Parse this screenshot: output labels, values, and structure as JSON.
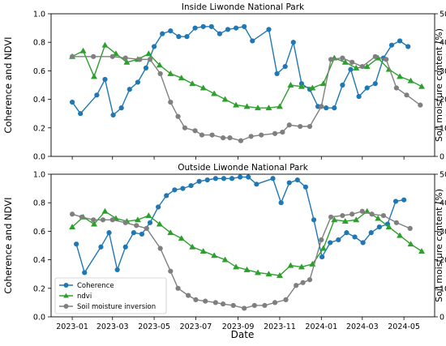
{
  "figure": {
    "xlabel": "Date",
    "x_ticks": [
      "2023-01",
      "2023-03",
      "2023-05",
      "2023-07",
      "2023-09",
      "2023-11",
      "2024-01",
      "2024-03",
      "2024-05"
    ],
    "legend": [
      {
        "name": "Coherence",
        "color": "#1f77b4",
        "marker": "circle"
      },
      {
        "name": "ndvi",
        "color": "#2ca02c",
        "marker": "triangle"
      },
      {
        "name": "Soil moisture inversion",
        "color": "#7f7f7f",
        "marker": "circle"
      }
    ]
  },
  "chart_data": [
    {
      "type": "line",
      "title": "Inside Liwonde National Park",
      "xlabel": "",
      "ylabel": "Coherence and NDVI",
      "y2label": "Soil moisture content (%)",
      "ylim": [
        0,
        1.0
      ],
      "y2lim": [
        0,
        50
      ],
      "yticks": [
        "0.0",
        "0.2",
        "0.4",
        "0.6",
        "0.8",
        "1.0"
      ],
      "y2ticks": [
        "0",
        "10",
        "20",
        "30",
        "40",
        "50"
      ],
      "xlim": [
        "2022-12-01",
        "2024-06-15"
      ],
      "grid": false,
      "series": [
        {
          "name": "Coherence",
          "axis": "left",
          "color": "#1f77b4",
          "marker": "circle",
          "points": [
            [
              "2023-01-01",
              0.38
            ],
            [
              "2023-01-13",
              0.3
            ],
            [
              "2023-02-06",
              0.43
            ],
            [
              "2023-02-18",
              0.54
            ],
            [
              "2023-03-02",
              0.29
            ],
            [
              "2023-03-14",
              0.34
            ],
            [
              "2023-03-26",
              0.47
            ],
            [
              "2023-04-07",
              0.52
            ],
            [
              "2023-04-19",
              0.62
            ],
            [
              "2023-05-01",
              0.77
            ],
            [
              "2023-05-13",
              0.86
            ],
            [
              "2023-05-25",
              0.88
            ],
            [
              "2023-06-06",
              0.84
            ],
            [
              "2023-06-18",
              0.84
            ],
            [
              "2023-06-30",
              0.9
            ],
            [
              "2023-07-12",
              0.91
            ],
            [
              "2023-07-24",
              0.91
            ],
            [
              "2023-08-05",
              0.86
            ],
            [
              "2023-08-17",
              0.89
            ],
            [
              "2023-08-29",
              0.9
            ],
            [
              "2023-09-10",
              0.91
            ],
            [
              "2023-09-22",
              0.81
            ],
            [
              "2023-10-16",
              0.89
            ],
            [
              "2023-10-28",
              0.58
            ],
            [
              "2023-11-09",
              0.63
            ],
            [
              "2023-11-21",
              0.8
            ],
            [
              "2023-12-03",
              0.51
            ],
            [
              "2023-12-15",
              0.47
            ],
            [
              "2023-12-27",
              0.35
            ],
            [
              "2024-01-08",
              0.34
            ],
            [
              "2024-01-20",
              0.34
            ],
            [
              "2024-02-01",
              0.5
            ],
            [
              "2024-02-13",
              0.61
            ],
            [
              "2024-02-25",
              0.42
            ],
            [
              "2024-03-08",
              0.48
            ],
            [
              "2024-03-20",
              0.51
            ],
            [
              "2024-04-01",
              0.69
            ],
            [
              "2024-04-13",
              0.78
            ],
            [
              "2024-04-25",
              0.81
            ],
            [
              "2024-05-07",
              0.77
            ]
          ]
        },
        {
          "name": "ndvi",
          "axis": "left",
          "color": "#2ca02c",
          "marker": "triangle",
          "points": [
            [
              "2023-01-01",
              0.7
            ],
            [
              "2023-01-17",
              0.74
            ],
            [
              "2023-02-02",
              0.56
            ],
            [
              "2023-02-18",
              0.78
            ],
            [
              "2023-03-06",
              0.72
            ],
            [
              "2023-03-22",
              0.66
            ],
            [
              "2023-04-07",
              0.68
            ],
            [
              "2023-04-23",
              0.72
            ],
            [
              "2023-05-09",
              0.64
            ],
            [
              "2023-05-25",
              0.58
            ],
            [
              "2023-06-10",
              0.55
            ],
            [
              "2023-06-26",
              0.51
            ],
            [
              "2023-07-12",
              0.48
            ],
            [
              "2023-07-28",
              0.44
            ],
            [
              "2023-08-13",
              0.4
            ],
            [
              "2023-08-29",
              0.36
            ],
            [
              "2023-09-14",
              0.35
            ],
            [
              "2023-09-30",
              0.34
            ],
            [
              "2023-10-16",
              0.34
            ],
            [
              "2023-11-01",
              0.35
            ],
            [
              "2023-11-17",
              0.5
            ],
            [
              "2023-12-03",
              0.49
            ],
            [
              "2023-12-19",
              0.48
            ],
            [
              "2024-01-04",
              0.51
            ],
            [
              "2024-01-20",
              0.69
            ],
            [
              "2024-02-05",
              0.66
            ],
            [
              "2024-02-21",
              0.62
            ],
            [
              "2024-03-08",
              0.63
            ],
            [
              "2024-03-24",
              0.69
            ],
            [
              "2024-04-09",
              0.61
            ],
            [
              "2024-04-25",
              0.56
            ],
            [
              "2024-05-11",
              0.53
            ],
            [
              "2024-05-27",
              0.49
            ]
          ]
        },
        {
          "name": "Soil moisture inversion",
          "axis": "right",
          "color": "#7f7f7f",
          "marker": "circle",
          "points": [
            [
              "2023-01-01",
              35
            ],
            [
              "2023-02-01",
              35
            ],
            [
              "2023-03-01",
              35
            ],
            [
              "2023-03-20",
              34.5
            ],
            [
              "2023-04-10",
              34
            ],
            [
              "2023-04-25",
              34
            ],
            [
              "2023-05-10",
              29
            ],
            [
              "2023-05-25",
              19
            ],
            [
              "2023-06-05",
              14
            ],
            [
              "2023-06-15",
              10
            ],
            [
              "2023-06-30",
              9
            ],
            [
              "2023-07-10",
              7.5
            ],
            [
              "2023-07-25",
              7.5
            ],
            [
              "2023-08-10",
              6.5
            ],
            [
              "2023-08-20",
              6.5
            ],
            [
              "2023-09-05",
              5.5
            ],
            [
              "2023-09-20",
              7
            ],
            [
              "2023-10-05",
              7.5
            ],
            [
              "2023-10-25",
              8
            ],
            [
              "2023-11-05",
              8.5
            ],
            [
              "2023-11-15",
              11
            ],
            [
              "2023-12-01",
              10.5
            ],
            [
              "2023-12-15",
              10.5
            ],
            [
              "2024-01-01",
              17.5
            ],
            [
              "2024-01-15",
              34
            ],
            [
              "2024-02-01",
              34.5
            ],
            [
              "2024-02-15",
              33
            ],
            [
              "2024-03-01",
              31.5
            ],
            [
              "2024-03-20",
              35
            ],
            [
              "2024-04-05",
              34
            ],
            [
              "2024-04-20",
              24
            ],
            [
              "2024-05-05",
              21.5
            ],
            [
              "2024-05-25",
              18
            ]
          ]
        }
      ]
    },
    {
      "type": "line",
      "title": "Outside Liwonde National Park",
      "xlabel": "Date",
      "ylabel": "Coherence and NDVI",
      "y2label": "Soil moisture content (%)",
      "ylim": [
        0,
        1.0
      ],
      "y2lim": [
        0,
        50
      ],
      "yticks": [
        "0.0",
        "0.2",
        "0.4",
        "0.6",
        "0.8",
        "1.0"
      ],
      "y2ticks": [
        "0",
        "10",
        "20",
        "30",
        "40",
        "50"
      ],
      "xlim": [
        "2022-12-01",
        "2024-06-15"
      ],
      "grid": false,
      "legend_position": "lower left",
      "series": [
        {
          "name": "Coherence",
          "axis": "left",
          "color": "#1f77b4",
          "marker": "circle",
          "points": [
            [
              "2023-01-07",
              0.51
            ],
            [
              "2023-01-19",
              0.31
            ],
            [
              "2023-02-12",
              0.49
            ],
            [
              "2023-02-24",
              0.59
            ],
            [
              "2023-03-08",
              0.33
            ],
            [
              "2023-03-20",
              0.49
            ],
            [
              "2023-04-01",
              0.59
            ],
            [
              "2023-04-13",
              0.58
            ],
            [
              "2023-04-25",
              0.66
            ],
            [
              "2023-05-07",
              0.77
            ],
            [
              "2023-05-19",
              0.85
            ],
            [
              "2023-05-31",
              0.89
            ],
            [
              "2023-06-12",
              0.9
            ],
            [
              "2023-06-24",
              0.92
            ],
            [
              "2023-07-06",
              0.95
            ],
            [
              "2023-07-18",
              0.96
            ],
            [
              "2023-07-30",
              0.97
            ],
            [
              "2023-08-11",
              0.97
            ],
            [
              "2023-08-23",
              0.97
            ],
            [
              "2023-09-04",
              0.98
            ],
            [
              "2023-09-16",
              0.98
            ],
            [
              "2023-09-28",
              0.93
            ],
            [
              "2023-10-22",
              0.97
            ],
            [
              "2023-11-03",
              0.8
            ],
            [
              "2023-11-15",
              0.94
            ],
            [
              "2023-11-27",
              0.96
            ],
            [
              "2023-12-09",
              0.91
            ],
            [
              "2023-12-21",
              0.68
            ],
            [
              "2024-01-02",
              0.42
            ],
            [
              "2024-01-14",
              0.52
            ],
            [
              "2024-01-26",
              0.54
            ],
            [
              "2024-02-07",
              0.59
            ],
            [
              "2024-02-19",
              0.56
            ],
            [
              "2024-03-02",
              0.52
            ],
            [
              "2024-03-14",
              0.59
            ],
            [
              "2024-03-26",
              0.63
            ],
            [
              "2024-04-07",
              0.65
            ],
            [
              "2024-04-19",
              0.81
            ],
            [
              "2024-05-01",
              0.82
            ]
          ]
        },
        {
          "name": "ndvi",
          "axis": "left",
          "color": "#2ca02c",
          "marker": "triangle",
          "points": [
            [
              "2023-01-01",
              0.63
            ],
            [
              "2023-01-17",
              0.7
            ],
            [
              "2023-02-02",
              0.65
            ],
            [
              "2023-02-18",
              0.74
            ],
            [
              "2023-03-06",
              0.69
            ],
            [
              "2023-03-22",
              0.67
            ],
            [
              "2023-04-07",
              0.68
            ],
            [
              "2023-04-23",
              0.71
            ],
            [
              "2023-05-09",
              0.65
            ],
            [
              "2023-05-25",
              0.59
            ],
            [
              "2023-06-10",
              0.55
            ],
            [
              "2023-06-26",
              0.49
            ],
            [
              "2023-07-12",
              0.46
            ],
            [
              "2023-07-28",
              0.43
            ],
            [
              "2023-08-13",
              0.4
            ],
            [
              "2023-08-29",
              0.35
            ],
            [
              "2023-09-14",
              0.33
            ],
            [
              "2023-09-30",
              0.31
            ],
            [
              "2023-10-16",
              0.3
            ],
            [
              "2023-11-01",
              0.29
            ],
            [
              "2023-11-17",
              0.36
            ],
            [
              "2023-12-03",
              0.35
            ],
            [
              "2023-12-19",
              0.37
            ],
            [
              "2024-01-04",
              0.48
            ],
            [
              "2024-01-20",
              0.68
            ],
            [
              "2024-02-05",
              0.67
            ],
            [
              "2024-02-21",
              0.68
            ],
            [
              "2024-03-08",
              0.74
            ],
            [
              "2024-03-24",
              0.69
            ],
            [
              "2024-04-09",
              0.63
            ],
            [
              "2024-04-25",
              0.57
            ],
            [
              "2024-05-11",
              0.51
            ],
            [
              "2024-05-27",
              0.46
            ]
          ]
        },
        {
          "name": "Soil moisture inversion",
          "axis": "right",
          "color": "#7f7f7f",
          "marker": "circle",
          "points": [
            [
              "2023-01-01",
              36
            ],
            [
              "2023-01-15",
              35
            ],
            [
              "2023-02-01",
              34
            ],
            [
              "2023-02-15",
              34
            ],
            [
              "2023-03-01",
              34
            ],
            [
              "2023-03-20",
              33
            ],
            [
              "2023-04-05",
              32
            ],
            [
              "2023-04-20",
              31
            ],
            [
              "2023-05-10",
              24
            ],
            [
              "2023-05-25",
              16
            ],
            [
              "2023-06-05",
              10
            ],
            [
              "2023-06-20",
              7.5
            ],
            [
              "2023-07-01",
              6
            ],
            [
              "2023-07-15",
              5.5
            ],
            [
              "2023-07-30",
              5
            ],
            [
              "2023-08-10",
              4.5
            ],
            [
              "2023-08-25",
              4
            ],
            [
              "2023-09-10",
              3
            ],
            [
              "2023-09-25",
              4
            ],
            [
              "2023-10-10",
              4
            ],
            [
              "2023-10-25",
              5
            ],
            [
              "2023-11-10",
              6
            ],
            [
              "2023-11-25",
              11
            ],
            [
              "2023-12-05",
              12
            ],
            [
              "2023-12-15",
              13
            ],
            [
              "2024-01-01",
              27
            ],
            [
              "2024-01-15",
              35
            ],
            [
              "2024-02-01",
              35.5
            ],
            [
              "2024-02-15",
              36
            ],
            [
              "2024-03-01",
              37
            ],
            [
              "2024-03-15",
              36
            ],
            [
              "2024-04-01",
              35.5
            ],
            [
              "2024-04-20",
              33
            ],
            [
              "2024-05-10",
              31
            ]
          ]
        }
      ]
    }
  ]
}
